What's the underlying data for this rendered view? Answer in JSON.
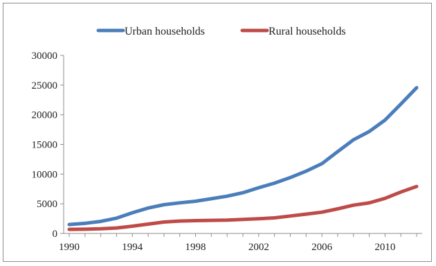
{
  "chart_data": {
    "type": "line",
    "title": "",
    "xlabel": "",
    "ylabel": "",
    "x": [
      1990,
      1991,
      1992,
      1993,
      1994,
      1995,
      1996,
      1997,
      1998,
      1999,
      2000,
      2001,
      2002,
      2003,
      2004,
      2005,
      2006,
      2007,
      2008,
      2009,
      2010,
      2011,
      2012
    ],
    "series": [
      {
        "name": "Urban households",
        "color": "#4a7ebb",
        "values": [
          1510,
          1700,
          2027,
          2577,
          3496,
          4283,
          4839,
          5160,
          5425,
          5854,
          6280,
          6860,
          7703,
          8472,
          9422,
          10493,
          11759,
          13786,
          15781,
          17175,
          19109,
          21810,
          24565
        ]
      },
      {
        "name": "Rural households",
        "color": "#be4b48",
        "values": [
          686,
          709,
          784,
          922,
          1221,
          1578,
          1926,
          2090,
          2162,
          2210,
          2253,
          2366,
          2476,
          2622,
          2936,
          3255,
          3587,
          4140,
          4761,
          5153,
          5919,
          6977,
          7917
        ]
      }
    ],
    "x_ticks": [
      "1990",
      "1994",
      "1998",
      "2002",
      "2006",
      "2010"
    ],
    "y_ticks": [
      "0",
      "5000",
      "10000",
      "15000",
      "20000",
      "25000",
      "30000"
    ],
    "ylim": [
      0,
      30000
    ],
    "xlim": [
      1990,
      2012
    ],
    "grid": false,
    "legend_position": "top"
  }
}
